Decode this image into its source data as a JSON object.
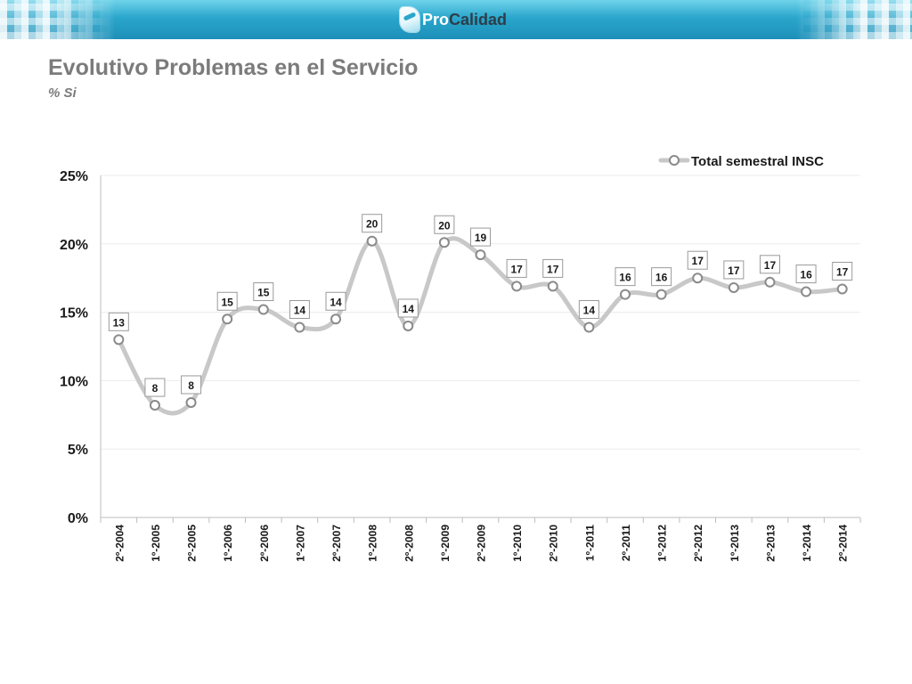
{
  "header": {
    "logo_part1": "Pro",
    "logo_part2": "Calidad"
  },
  "slide": {
    "title": "Evolutivo Problemas en el Servicio",
    "subtitle": "% Si"
  },
  "colors": {
    "banner": "#2aa6cc",
    "series_line": "#c8c8c8",
    "marker_stroke": "#8a8a8a",
    "text": "#1a1a1a",
    "title": "#7b7b7b",
    "grid": "#ececec"
  },
  "chart_data": {
    "type": "line",
    "smooth": true,
    "categories": [
      "2º-2004",
      "1º-2005",
      "2º-2005",
      "1º-2006",
      "2º-2006",
      "1º-2007",
      "2º-2007",
      "1º-2008",
      "2º-2008",
      "1º-2009",
      "2º-2009",
      "1º-2010",
      "2º-2010",
      "1º-2011",
      "2º-2011",
      "1º-2012",
      "2º-2012",
      "1º-2013",
      "2º-2013",
      "1º-2014",
      "2º-2014"
    ],
    "series": [
      {
        "name": "Total semestral INSC",
        "values": [
          13.0,
          8.2,
          8.4,
          14.5,
          15.2,
          13.9,
          14.5,
          20.2,
          14.0,
          20.1,
          19.2,
          16.9,
          16.9,
          13.9,
          16.3,
          16.3,
          17.5,
          16.8,
          17.2,
          16.5,
          16.7
        ],
        "data_labels": [
          "13",
          "8",
          "8",
          "15",
          "15",
          "14",
          "14",
          "20",
          "14",
          "20",
          "19",
          "17",
          "17",
          "14",
          "16",
          "16",
          "17",
          "17",
          "17",
          "16",
          "17"
        ]
      }
    ],
    "ylim": [
      0,
      25
    ],
    "yticks": [
      0,
      5,
      10,
      15,
      20,
      25
    ],
    "ytick_labels": [
      "0%",
      "5%",
      "10%",
      "15%",
      "20%",
      "25%"
    ],
    "grid": true,
    "legend_position": "top-right",
    "xlabel": "",
    "ylabel": ""
  }
}
